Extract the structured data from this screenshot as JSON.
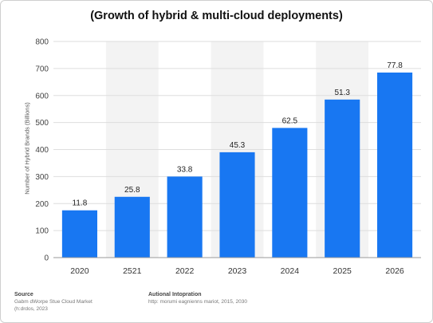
{
  "chart_data": {
    "type": "bar",
    "title": "(Growth of hybrid & multi-cloud deployments)",
    "ylabel": "Number of Hybrid Brands (Billions)",
    "xlabel": "",
    "categories": [
      "2020",
      "2521",
      "2022",
      "2023",
      "2024",
      "2025",
      "2026"
    ],
    "values": [
      175,
      225,
      300,
      390,
      480,
      585,
      685
    ],
    "data_labels": [
      "11.8",
      "25.8",
      "33.8",
      "45.3",
      "62.5",
      "51.3",
      "77.8"
    ],
    "ylim": [
      0,
      800
    ],
    "yticks": [
      0,
      100,
      200,
      300,
      400,
      500,
      600,
      700,
      800
    ],
    "bar_color": "#1877f2",
    "grid": true,
    "alternating_column_shading": true,
    "legend": "none"
  },
  "footer": {
    "source_heading": "Source",
    "source_line1": "Gabm dWorpe Stue Cloud Market",
    "source_line2": "(h:drdos, 2023",
    "info_heading": "Autional Intopration",
    "info_line1": "http: morumi eagnienns mariot, 2015, 2030"
  }
}
